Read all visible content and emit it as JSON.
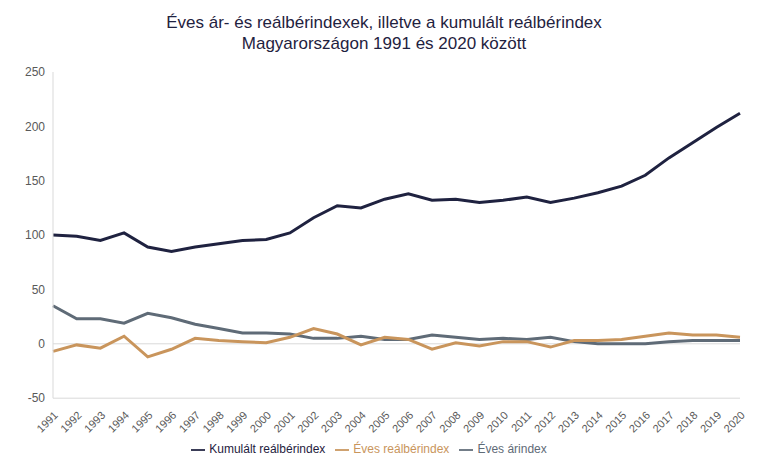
{
  "chart_data": {
    "type": "line",
    "title": [
      "Éves ár- és reálbérindexek, illetve a kumulált reálbérindex",
      "Magyarországon 1991 és 2020 között"
    ],
    "categories": [
      "1991",
      "1992",
      "1993",
      "1994",
      "1995",
      "1996",
      "1997",
      "1998",
      "1999",
      "2000",
      "2001",
      "2002",
      "2003",
      "2004",
      "2005",
      "2006",
      "2007",
      "2008",
      "2009",
      "2010",
      "2011",
      "2012",
      "2013",
      "2014",
      "2015",
      "2016",
      "2017",
      "2018",
      "2019",
      "2020"
    ],
    "series": [
      {
        "name": "Éves árindex",
        "color": "#5f6b77",
        "values": [
          35,
          23,
          23,
          19,
          28,
          24,
          18,
          14,
          10,
          10,
          9,
          5,
          5,
          7,
          4,
          4,
          8,
          6,
          4,
          5,
          4,
          6,
          2,
          0,
          0,
          0,
          2,
          3,
          3,
          3
        ]
      },
      {
        "name": "Éves reálbérindex",
        "color": "#c9955c",
        "values": [
          -7,
          -1,
          -4,
          7,
          -12,
          -5,
          5,
          3,
          2,
          1,
          6,
          14,
          9,
          -1,
          6,
          4,
          -5,
          1,
          -2,
          2,
          2,
          -3,
          3,
          3,
          4,
          7,
          10,
          8,
          8,
          6
        ]
      },
      {
        "name": "Kumulált reálbérindex",
        "color": "#1f2240",
        "values": [
          100,
          99,
          95,
          102,
          89,
          85,
          89,
          92,
          95,
          96,
          102,
          116,
          127,
          125,
          133,
          138,
          132,
          133,
          130,
          132,
          135,
          130,
          134,
          139,
          145,
          155,
          171,
          185,
          199,
          212
        ]
      }
    ],
    "ylim": [
      -50,
      250
    ],
    "yticks": [
      -50,
      0,
      50,
      100,
      150,
      200,
      250
    ],
    "grid": false,
    "legend": "bottom"
  }
}
